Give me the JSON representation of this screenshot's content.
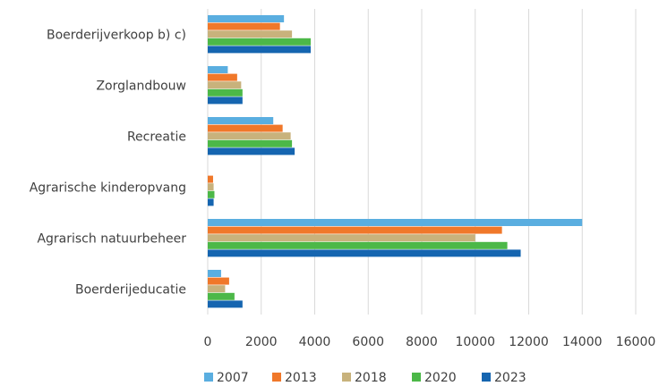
{
  "chart_data": {
    "type": "bar",
    "orientation": "horizontal",
    "categories": [
      "Boerderijverkoop b) c)",
      "Zorglandbouw",
      "Recreatie",
      "Agrarische kinderopvang",
      "Agrarisch natuurbeheer",
      "Boerderijeducatie"
    ],
    "series": [
      {
        "name": "2007",
        "color": "#5aaee0",
        "values": [
          2850,
          750,
          2450,
          0,
          14000,
          500
        ]
      },
      {
        "name": "2013",
        "color": "#f0782a",
        "values": [
          2700,
          1100,
          2800,
          200,
          11000,
          800
        ]
      },
      {
        "name": "2018",
        "color": "#c8b27c",
        "values": [
          3150,
          1250,
          3100,
          220,
          10000,
          650
        ]
      },
      {
        "name": "2020",
        "color": "#4cb848",
        "values": [
          3850,
          1300,
          3150,
          250,
          11200,
          1000
        ]
      },
      {
        "name": "2023",
        "color": "#1565b0",
        "values": [
          3850,
          1300,
          3250,
          220,
          11700,
          1300
        ]
      }
    ],
    "xlim": [
      0,
      16000
    ],
    "xticks": [
      "0",
      "2000",
      "4000",
      "6000",
      "8000",
      "10000",
      "12000",
      "14000",
      "16000"
    ],
    "grid": "vertical",
    "legend": "bottom"
  }
}
